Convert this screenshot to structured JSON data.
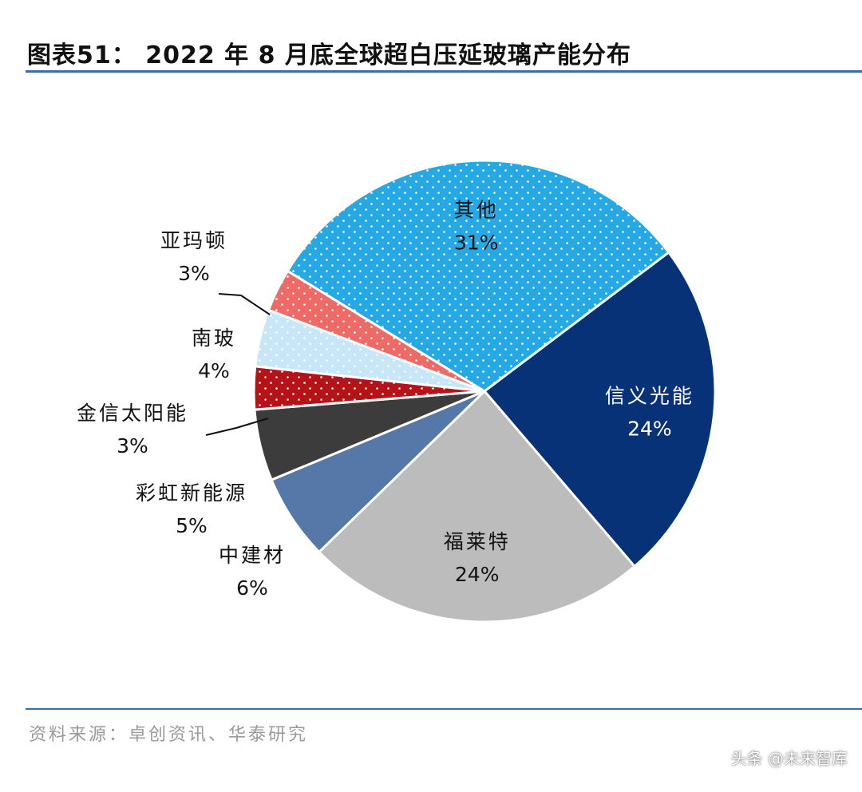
{
  "header": {
    "title": "图表51： 2022 年 8 月底全球超白压延玻璃产能分布"
  },
  "footer": {
    "source": "资料来源：卓创资讯、华泰研究",
    "watermark": "头条 @未来智库"
  },
  "chart_data": {
    "type": "pie",
    "title": "图表51： 2022 年 8 月底全球超白压延玻璃产能分布",
    "unit": "%",
    "slices": [
      {
        "name": "信义光能",
        "value": 24,
        "label": "24%",
        "color": "#083278",
        "pattern": "none",
        "text_color": "#ffffff"
      },
      {
        "name": "福莱特",
        "value": 24,
        "label": "24%",
        "color": "#bcbcbc",
        "pattern": "none",
        "text_color": "#111111"
      },
      {
        "name": "中建材",
        "value": 6,
        "label": "6%",
        "color": "#5578a8",
        "pattern": "none",
        "text_color": "#111111"
      },
      {
        "name": "彩虹新能源",
        "value": 5,
        "label": "5%",
        "color": "#3c3c3c",
        "pattern": "none",
        "text_color": "#111111"
      },
      {
        "name": "金信太阳能",
        "value": 3,
        "label": "3%",
        "color": "#b51318",
        "pattern": "dots",
        "text_color": "#111111"
      },
      {
        "name": "南玻",
        "value": 4,
        "label": "4%",
        "color": "#c7e6f7",
        "pattern": "dots",
        "text_color": "#111111"
      },
      {
        "name": "亚玛顿",
        "value": 3,
        "label": "3%",
        "color": "#ee6a66",
        "pattern": "dots",
        "text_color": "#111111"
      },
      {
        "name": "其他",
        "value": 31,
        "label": "31%",
        "color": "#25a8e3",
        "pattern": "dots",
        "text_color": "#111111"
      }
    ]
  }
}
